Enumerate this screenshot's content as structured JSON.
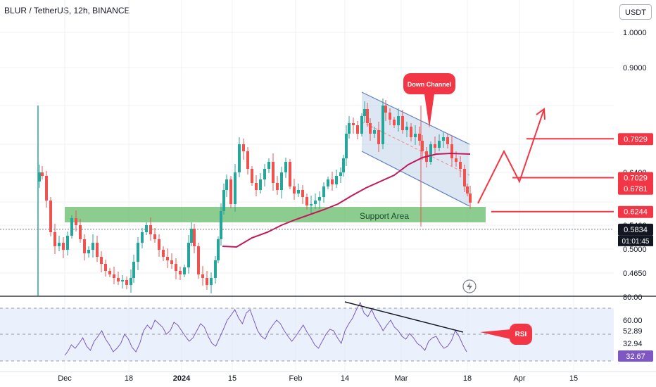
{
  "header": {
    "title": "BLUR / TetherUS, 12h, BINANCE",
    "unit": "USDT"
  },
  "chart_data": {
    "type": "candlestick",
    "ylim": [
      0.43,
      1.09
    ],
    "y_ticks": [
      "1.0000",
      "0.9000",
      "0.6400",
      "0.5400",
      "0.5000",
      "0.4650"
    ],
    "x_ticks": [
      "Dec",
      "18",
      "2024",
      "15",
      "Feb",
      "14",
      "Mar",
      "18",
      "Apr",
      "15"
    ],
    "price_labels": [
      {
        "text": "0.7929",
        "value": 0.7929,
        "color": "#f23645"
      },
      {
        "text": "0.7029",
        "value": 0.7029,
        "color": "#f23645"
      },
      {
        "text": "0.6781",
        "value": 0.6781,
        "color": "#f23645"
      },
      {
        "text": "0.6244",
        "value": 0.6244,
        "color": "#f23645"
      },
      {
        "text": "0.5834",
        "value": 0.5834,
        "color": "#131722"
      }
    ],
    "countdown": "01:01:45",
    "annotations": {
      "down_channel": "Down Channel",
      "support_area": "Support Area",
      "rsi": "RSI"
    },
    "rsi": {
      "ticks": [
        "80.00",
        "60.00",
        "52.89",
        "32.94"
      ],
      "current": "32.67"
    },
    "colors": {
      "up": "#26a69a",
      "down": "#ef5350",
      "ma": "#c2185b",
      "support": "#66bb6a",
      "annotation": "#f23645"
    }
  }
}
